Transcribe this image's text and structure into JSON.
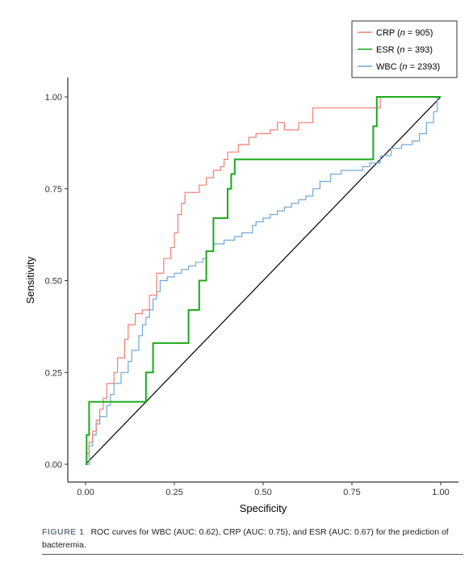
{
  "chart_data": {
    "type": "line",
    "title": "",
    "xlabel": "Specificity",
    "ylabel": "Sensitivity",
    "xlim": [
      0,
      1
    ],
    "ylim": [
      0,
      1
    ],
    "x_ticks": [
      "0.00",
      "0.25",
      "0.50",
      "0.75",
      "1.00"
    ],
    "y_ticks": [
      "0.00",
      "0.25",
      "0.50",
      "0.75",
      "1.00"
    ],
    "grid": false,
    "legend_position": "top-right",
    "reference_line": {
      "x": [
        0,
        1
      ],
      "y": [
        0,
        1
      ],
      "color": "#000000"
    },
    "series": [
      {
        "name_main": "CRP (",
        "name_n": "n",
        "name_rest": " = 905)",
        "color": "#f08070",
        "x": [
          0.0,
          0.003,
          0.003,
          0.01,
          0.01,
          0.02,
          0.02,
          0.03,
          0.03,
          0.04,
          0.04,
          0.05,
          0.05,
          0.06,
          0.06,
          0.08,
          0.08,
          0.09,
          0.09,
          0.11,
          0.11,
          0.12,
          0.12,
          0.14,
          0.14,
          0.16,
          0.16,
          0.18,
          0.18,
          0.2,
          0.2,
          0.22,
          0.22,
          0.24,
          0.24,
          0.25,
          0.25,
          0.26,
          0.26,
          0.27,
          0.27,
          0.28,
          0.28,
          0.32,
          0.32,
          0.34,
          0.34,
          0.36,
          0.36,
          0.38,
          0.38,
          0.39,
          0.39,
          0.4,
          0.4,
          0.43,
          0.43,
          0.46,
          0.46,
          0.48,
          0.48,
          0.52,
          0.52,
          0.54,
          0.54,
          0.56,
          0.56,
          0.6,
          0.6,
          0.64,
          0.64,
          0.65,
          0.65,
          0.83,
          0.83,
          1.0
        ],
        "y": [
          0.0,
          0.0,
          0.03,
          0.03,
          0.06,
          0.06,
          0.09,
          0.09,
          0.12,
          0.12,
          0.15,
          0.15,
          0.18,
          0.18,
          0.22,
          0.22,
          0.25,
          0.25,
          0.29,
          0.29,
          0.34,
          0.34,
          0.38,
          0.38,
          0.41,
          0.41,
          0.42,
          0.42,
          0.46,
          0.46,
          0.52,
          0.52,
          0.56,
          0.56,
          0.59,
          0.59,
          0.63,
          0.63,
          0.68,
          0.68,
          0.71,
          0.71,
          0.74,
          0.74,
          0.76,
          0.76,
          0.78,
          0.78,
          0.8,
          0.8,
          0.81,
          0.81,
          0.83,
          0.83,
          0.85,
          0.85,
          0.87,
          0.87,
          0.89,
          0.89,
          0.9,
          0.9,
          0.91,
          0.91,
          0.93,
          0.93,
          0.91,
          0.91,
          0.93,
          0.93,
          0.97,
          0.97,
          0.97,
          0.97,
          1.0,
          1.0
        ]
      },
      {
        "name_main": "ESR (",
        "name_n": "n",
        "name_rest": " = 393)",
        "color": "#1aaa1a",
        "x": [
          0.0,
          0.003,
          0.003,
          0.01,
          0.01,
          0.02,
          0.02,
          0.17,
          0.17,
          0.19,
          0.19,
          0.22,
          0.22,
          0.29,
          0.29,
          0.32,
          0.32,
          0.34,
          0.34,
          0.36,
          0.36,
          0.38,
          0.38,
          0.4,
          0.4,
          0.41,
          0.41,
          0.42,
          0.42,
          0.43,
          0.43,
          0.62,
          0.62,
          0.81,
          0.81,
          0.82,
          0.82,
          1.0
        ],
        "y": [
          0.0,
          0.0,
          0.08,
          0.08,
          0.17,
          0.17,
          0.17,
          0.17,
          0.25,
          0.25,
          0.33,
          0.33,
          0.33,
          0.33,
          0.42,
          0.42,
          0.5,
          0.5,
          0.58,
          0.58,
          0.67,
          0.67,
          0.67,
          0.67,
          0.75,
          0.75,
          0.79,
          0.79,
          0.83,
          0.83,
          0.83,
          0.83,
          0.83,
          0.83,
          0.92,
          0.92,
          1.0,
          1.0
        ]
      },
      {
        "name_main": "WBC (",
        "name_n": "n",
        "name_rest": " = 2393)",
        "color": "#6fa8dc",
        "x": [
          0.0,
          0.01,
          0.01,
          0.02,
          0.02,
          0.03,
          0.03,
          0.04,
          0.04,
          0.06,
          0.06,
          0.07,
          0.07,
          0.08,
          0.08,
          0.1,
          0.1,
          0.12,
          0.12,
          0.13,
          0.13,
          0.15,
          0.15,
          0.16,
          0.16,
          0.17,
          0.17,
          0.18,
          0.18,
          0.19,
          0.19,
          0.2,
          0.2,
          0.21,
          0.21,
          0.23,
          0.23,
          0.25,
          0.25,
          0.27,
          0.27,
          0.29,
          0.29,
          0.31,
          0.31,
          0.33,
          0.33,
          0.34,
          0.34,
          0.36,
          0.36,
          0.39,
          0.39,
          0.42,
          0.42,
          0.44,
          0.44,
          0.47,
          0.47,
          0.48,
          0.48,
          0.5,
          0.5,
          0.52,
          0.52,
          0.54,
          0.54,
          0.56,
          0.56,
          0.58,
          0.58,
          0.6,
          0.6,
          0.62,
          0.62,
          0.64,
          0.64,
          0.66,
          0.66,
          0.69,
          0.69,
          0.72,
          0.72,
          0.78,
          0.78,
          0.8,
          0.8,
          0.83,
          0.83,
          0.86,
          0.86,
          0.89,
          0.89,
          0.92,
          0.92,
          0.94,
          0.94,
          0.96,
          0.96,
          0.98,
          0.98,
          0.99,
          0.99,
          1.0
        ],
        "y": [
          0.0,
          0.0,
          0.05,
          0.05,
          0.08,
          0.08,
          0.11,
          0.11,
          0.13,
          0.13,
          0.16,
          0.16,
          0.19,
          0.19,
          0.22,
          0.22,
          0.25,
          0.25,
          0.28,
          0.28,
          0.31,
          0.31,
          0.35,
          0.35,
          0.38,
          0.38,
          0.4,
          0.4,
          0.42,
          0.42,
          0.45,
          0.45,
          0.47,
          0.47,
          0.5,
          0.5,
          0.51,
          0.51,
          0.52,
          0.52,
          0.53,
          0.53,
          0.54,
          0.54,
          0.55,
          0.55,
          0.56,
          0.56,
          0.58,
          0.58,
          0.6,
          0.6,
          0.61,
          0.61,
          0.62,
          0.62,
          0.63,
          0.63,
          0.65,
          0.65,
          0.66,
          0.66,
          0.67,
          0.67,
          0.68,
          0.68,
          0.69,
          0.69,
          0.7,
          0.7,
          0.71,
          0.71,
          0.72,
          0.72,
          0.73,
          0.73,
          0.75,
          0.75,
          0.77,
          0.77,
          0.79,
          0.79,
          0.8,
          0.8,
          0.81,
          0.81,
          0.82,
          0.82,
          0.84,
          0.84,
          0.86,
          0.86,
          0.87,
          0.87,
          0.88,
          0.88,
          0.9,
          0.9,
          0.93,
          0.93,
          0.96,
          0.96,
          1.0,
          1.0
        ]
      }
    ]
  },
  "caption": {
    "label": "FIGURE 1",
    "text": "ROC curves for WBC (AUC: 0.62), CRP (AUC: 0.75), and ESR (AUC: 0.67) for the prediction of bacteremia."
  }
}
